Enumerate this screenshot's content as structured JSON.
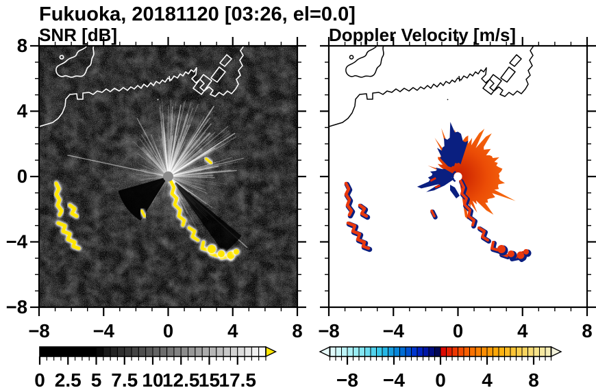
{
  "title": "Fukuoka, 20181120 [03:26, el=0.0]",
  "panels": {
    "snr": {
      "subtitle": "SNR [dB]",
      "x_ticks": [
        {
          "v": -8,
          "label": "−8"
        },
        {
          "v": -4,
          "label": "−4"
        },
        {
          "v": 0,
          "label": "0"
        },
        {
          "v": 4,
          "label": "4"
        },
        {
          "v": 8,
          "label": "8"
        }
      ],
      "y_ticks": [
        {
          "v": 8,
          "label": "8"
        },
        {
          "v": 4,
          "label": "4"
        },
        {
          "v": 0,
          "label": "0"
        },
        {
          "v": -4,
          "label": "−4"
        },
        {
          "v": -8,
          "label": "−8"
        }
      ]
    },
    "doppler": {
      "subtitle": "Doppler Velocity [m/s]",
      "x_ticks": [
        {
          "v": -8,
          "label": "−8"
        },
        {
          "v": -4,
          "label": "−4"
        },
        {
          "v": 0,
          "label": "0"
        },
        {
          "v": 4,
          "label": "4"
        },
        {
          "v": 8,
          "label": "8"
        }
      ]
    }
  },
  "colorbars": {
    "snr": {
      "min": 0,
      "max": 20,
      "cells": 32,
      "minor_step": 0.625,
      "ticks": [
        {
          "v": 0,
          "label": "0"
        },
        {
          "v": 2.5,
          "label": "2.5"
        },
        {
          "v": 5,
          "label": "5"
        },
        {
          "v": 7.5,
          "label": "7.5"
        },
        {
          "v": 10,
          "label": "10"
        },
        {
          "v": 12.5,
          "label": "12.5"
        },
        {
          "v": 15,
          "label": "15"
        },
        {
          "v": 17.5,
          "label": "17.5"
        }
      ],
      "stops": [
        [
          0,
          "#000000"
        ],
        [
          5,
          "#000000"
        ],
        [
          5.7,
          "#161616"
        ],
        [
          8,
          "#3c3c3c"
        ],
        [
          11,
          "#6e6e6e"
        ],
        [
          14,
          "#a0a0a0"
        ],
        [
          17,
          "#cfcfcf"
        ],
        [
          20,
          "#ffffff"
        ]
      ],
      "overflow_right": "#ffe600"
    },
    "doppler": {
      "min": -9.5,
      "max": 9.5,
      "cells": 38,
      "minor_step": 0.5,
      "ticks": [
        {
          "v": -8,
          "label": "−8"
        },
        {
          "v": -4,
          "label": "−4"
        },
        {
          "v": 0,
          "label": "0"
        },
        {
          "v": 4,
          "label": "4"
        },
        {
          "v": 8,
          "label": "8"
        }
      ],
      "stops": [
        [
          -9.5,
          "#e8fbfb"
        ],
        [
          -7,
          "#8feaf2"
        ],
        [
          -5,
          "#2cc3e9"
        ],
        [
          -3.5,
          "#0079d6"
        ],
        [
          -2,
          "#0028cc"
        ],
        [
          -1,
          "#000e97"
        ],
        [
          -0.05,
          "#010441"
        ],
        [
          0.05,
          "#d80000"
        ],
        [
          1.5,
          "#f34300"
        ],
        [
          3,
          "#fb7a00"
        ],
        [
          5,
          "#fdad08"
        ],
        [
          6.5,
          "#fcc93e"
        ],
        [
          8,
          "#f8e07f"
        ],
        [
          9.3,
          "#f5edb8"
        ],
        [
          9.5,
          "#f3f2da"
        ]
      ],
      "overflow_left": "#e8fbfb",
      "overflow_right": "#f3f2da"
    }
  },
  "colors": {
    "snr_background": "#000000",
    "snr_high_echo": "#ffe600",
    "coast_snr": "#ffffff",
    "coast_doppler": "#000000",
    "doppler_positive": "#e8380d",
    "doppler_negative": "#0a1f80",
    "radar_center_disk": "#8a8a8a"
  },
  "chart_data": [
    {
      "type": "heatmap",
      "title": "SNR [dB]",
      "suptitle": "Fukuoka, 20181120 [03:26, el=0.0]",
      "xlim": [
        -8,
        8
      ],
      "ylim": [
        -8,
        8
      ],
      "x_ticks": [
        -8,
        -4,
        0,
        4,
        8
      ],
      "y_ticks": [
        -8,
        -4,
        0,
        4,
        8
      ],
      "grid": false,
      "colorbar": {
        "orientation": "horizontal",
        "range": [
          0,
          20
        ],
        "label_values": [
          0,
          2.5,
          5,
          7.5,
          10,
          12.5,
          15,
          17.5
        ],
        "scheme": "black to white grayscale, yellow overflow arrow above 20"
      },
      "notable_features": "black background of weak noise; bright radial streaks centered at radar origin (0,0); gray disk at origin; high-SNR yellow echo chain from (0,0) toward (3.5,-4.5); isolated yellow echoes near (-7,-0.5) to (-6,-3.5); white coastline of Hakata Bay with harbor piers near (1.5,5) to (3,6.5); island outline near (-6.5,7)"
    },
    {
      "type": "heatmap",
      "title": "Doppler Velocity [m/s]",
      "suptitle": "Fukuoka, 20181120 [03:26, el=0.0]",
      "xlim": [
        -8,
        8
      ],
      "ylim": [
        -8,
        8
      ],
      "x_ticks": [
        -8,
        -4,
        0,
        4,
        8
      ],
      "y_ticks": [
        -8,
        -4,
        0,
        4,
        8
      ],
      "grid": false,
      "colorbar": {
        "orientation": "horizontal",
        "range": [
          -9.5,
          9.5
        ],
        "label_values": [
          -8,
          -4,
          0,
          4,
          8
        ],
        "scheme": "pale-cyan to navy for negative, red to cream-yellow for positive, overflow arrows both ends"
      },
      "notable_features": "white background; jagged fan of positive velocities (~+2 to +6 m/s, red-orange) extending N through E to S of origin out to ~3.5 km; negative (navy, ~-2 to -6 m/s) patches north and west of origin; white hole at origin; paired red/navy echoes near (-7,-0.5) to (-6,-3.5) and along chain toward (3.5,-4.5); same coastline drawn in black"
    }
  ]
}
